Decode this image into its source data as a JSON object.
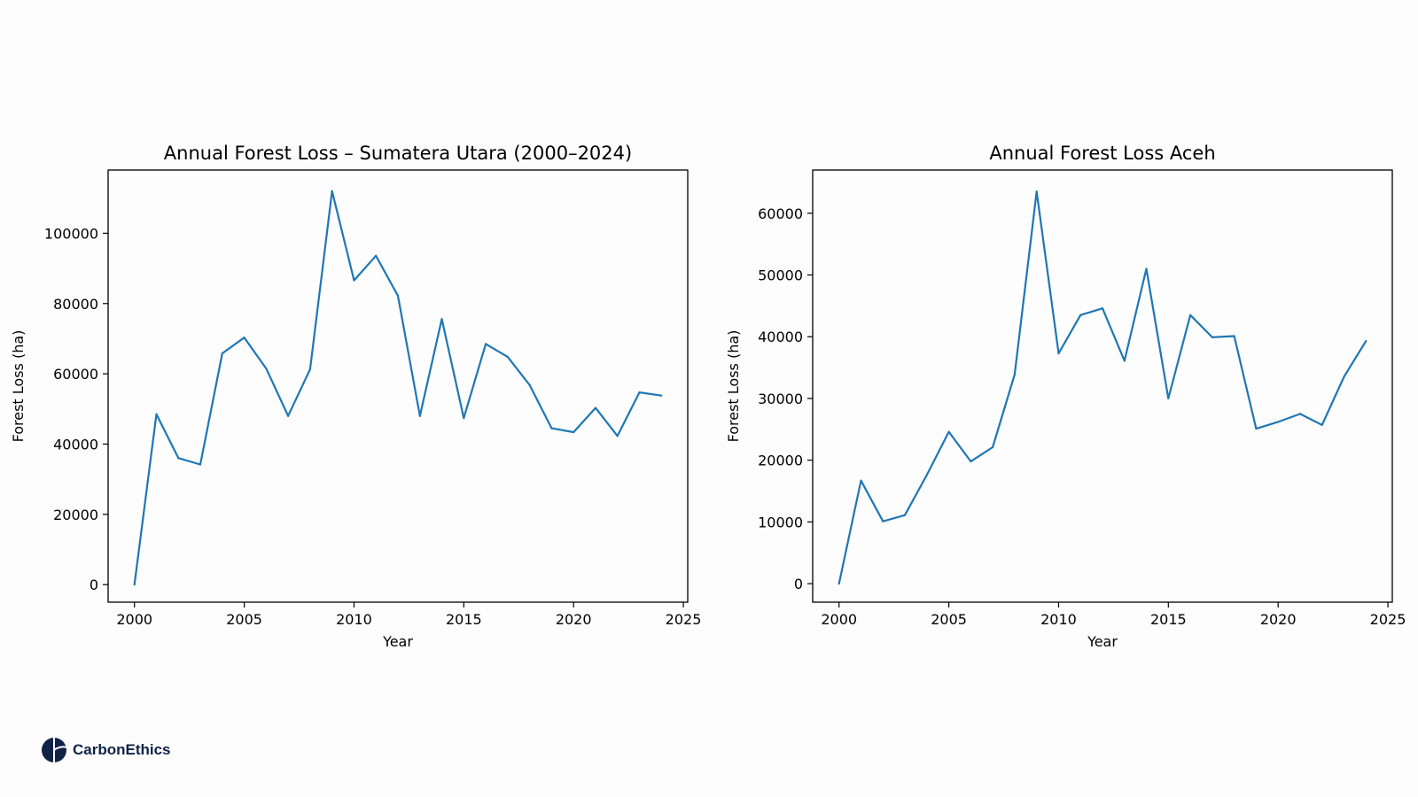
{
  "chart_data": [
    {
      "type": "line",
      "title": "Annual Forest Loss – Sumatera Utara (2000–2024)",
      "xlabel": "Year",
      "ylabel": "Forest Loss (ha)",
      "xlim": [
        1998.8,
        2025.2
      ],
      "ylim": [
        -5000,
        118000
      ],
      "xticks": [
        2000,
        2005,
        2010,
        2015,
        2020,
        2025
      ],
      "yticks": [
        0,
        20000,
        40000,
        60000,
        80000,
        100000
      ],
      "grid": false,
      "series_color": "#1f77b4",
      "x": [
        2000,
        2001,
        2002,
        2003,
        2004,
        2005,
        2006,
        2007,
        2008,
        2009,
        2010,
        2011,
        2012,
        2013,
        2014,
        2015,
        2016,
        2017,
        2018,
        2019,
        2020,
        2021,
        2022,
        2023,
        2024
      ],
      "y": [
        0,
        48500,
        36000,
        34200,
        65800,
        70300,
        61500,
        48000,
        61300,
        112000,
        86600,
        93600,
        82200,
        48000,
        75600,
        47400,
        68500,
        64800,
        56800,
        44500,
        43400,
        50300,
        42300,
        54700,
        53800
      ]
    },
    {
      "type": "line",
      "title": "Annual Forest Loss Aceh",
      "xlabel": "Year",
      "ylabel": "Forest Loss (ha)",
      "xlim": [
        1998.8,
        2025.2
      ],
      "ylim": [
        -3000,
        67000
      ],
      "xticks": [
        2000,
        2005,
        2010,
        2015,
        2020,
        2025
      ],
      "yticks": [
        0,
        10000,
        20000,
        30000,
        40000,
        50000,
        60000
      ],
      "grid": false,
      "series_color": "#1f77b4",
      "x": [
        2000,
        2001,
        2002,
        2003,
        2004,
        2005,
        2006,
        2007,
        2008,
        2009,
        2010,
        2011,
        2012,
        2013,
        2014,
        2015,
        2016,
        2017,
        2018,
        2019,
        2020,
        2021,
        2022,
        2023,
        2024
      ],
      "y": [
        0,
        16700,
        10100,
        11100,
        17600,
        24600,
        19800,
        22100,
        33900,
        63500,
        37300,
        43500,
        44600,
        36100,
        51000,
        30000,
        43500,
        39900,
        40100,
        25100,
        26200,
        27500,
        25700,
        33500,
        39300
      ]
    }
  ],
  "brand": {
    "name": "CarbonEthics",
    "logo_icon": "carbonethics-logo-icon",
    "color": "#0f2347"
  }
}
